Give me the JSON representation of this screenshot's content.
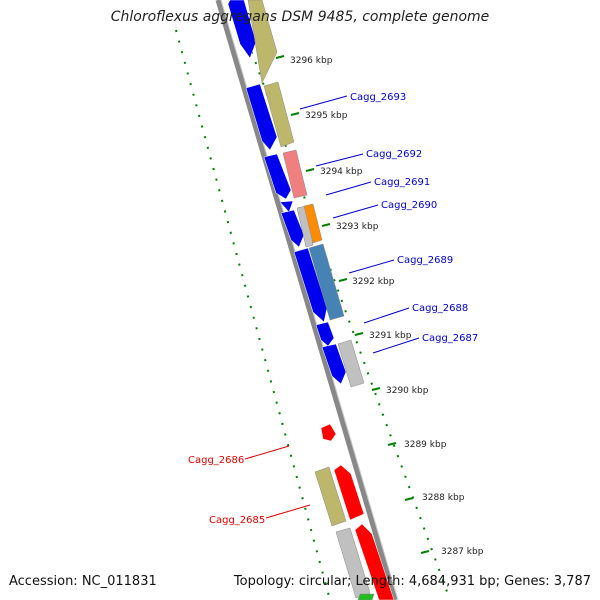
{
  "title": "Chloroflexus aggregans DSM 9485, complete genome",
  "footer": {
    "accession": "Accession: NC_011831",
    "summary": "Topology: circular; Length: 4,684,931 bp; Genes: 3,787"
  },
  "kbp_labels": [
    "3296 kbp",
    "3295 kbp",
    "3294 kbp",
    "3293 kbp",
    "3292 kbp",
    "3291 kbp",
    "3290 kbp",
    "3289 kbp",
    "3288 kbp",
    "3287 kbp"
  ],
  "gene_labels": [
    {
      "text": "Cagg_2693",
      "color": "#0000cc"
    },
    {
      "text": "Cagg_2692",
      "color": "#0000cc"
    },
    {
      "text": "Cagg_2691",
      "color": "#0000cc"
    },
    {
      "text": "Cagg_2690",
      "color": "#0000cc"
    },
    {
      "text": "Cagg_2689",
      "color": "#0000cc"
    },
    {
      "text": "Cagg_2688",
      "color": "#0000cc"
    },
    {
      "text": "Cagg_2687",
      "color": "#0000cc"
    },
    {
      "text": "Cagg_2686",
      "color": "#dd0000"
    },
    {
      "text": "Cagg_2685",
      "color": "#dd0000"
    }
  ],
  "colors": {
    "backbone": "#808080",
    "tick": "#008000",
    "cds_blue": "#0000ee",
    "cds_red": "#ff0000",
    "khaki": "#bdb76b",
    "salmon": "#f08080",
    "orange": "#ff8c00",
    "steelblue": "#4682b4",
    "grey": "#c0c0c0",
    "green": "#22bb22"
  }
}
